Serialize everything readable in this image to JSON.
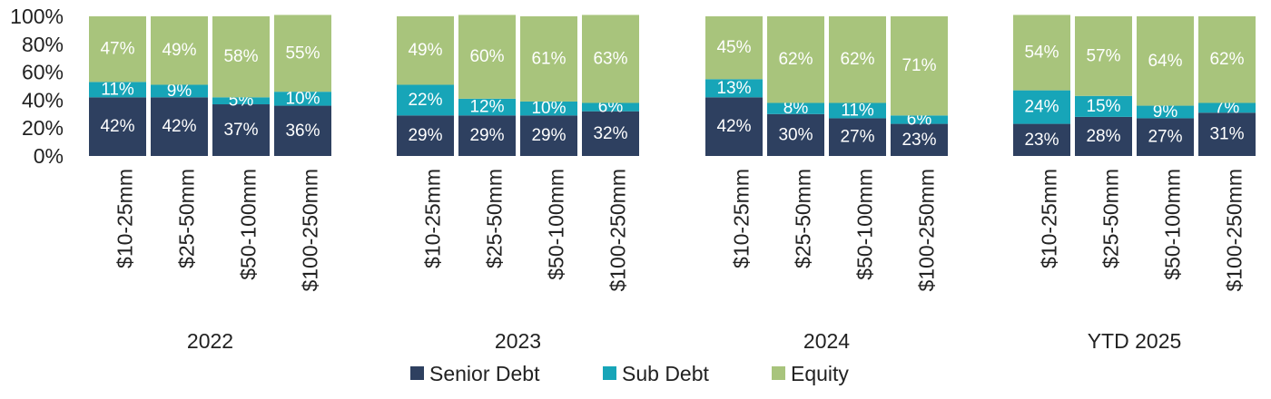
{
  "chart_data": {
    "type": "bar",
    "stacked": true,
    "ylim": [
      0,
      100
    ],
    "yticks": [
      "0%",
      "20%",
      "40%",
      "60%",
      "80%",
      "100%"
    ],
    "groups": [
      {
        "label": "2022",
        "categories": [
          "$10-25mm",
          "$25-50mm",
          "$50-100mm",
          "$100-250mm"
        ]
      },
      {
        "label": "2023",
        "categories": [
          "$10-25mm",
          "$25-50mm",
          "$50-100mm",
          "$100-250mm"
        ]
      },
      {
        "label": "2024",
        "categories": [
          "$10-25mm",
          "$25-50mm",
          "$50-100mm",
          "$100-250mm"
        ]
      },
      {
        "label": "YTD 2025",
        "categories": [
          "$10-25mm",
          "$25-50mm",
          "$50-100mm",
          "$100-250mm"
        ]
      }
    ],
    "series": [
      {
        "name": "Senior Debt",
        "color": "#2e4060",
        "values": [
          42,
          42,
          37,
          36,
          29,
          29,
          29,
          32,
          42,
          30,
          27,
          23,
          23,
          28,
          27,
          31
        ],
        "labels": [
          "42%",
          "42%",
          "37%",
          "36%",
          "29%",
          "29%",
          "29%",
          "32%",
          "42%",
          "30%",
          "27%",
          "23%",
          "23%",
          "28%",
          "27%",
          "31%"
        ]
      },
      {
        "name": "Sub Debt",
        "color": "#17a5b8",
        "values": [
          11,
          9,
          5,
          10,
          22,
          12,
          10,
          6,
          13,
          8,
          11,
          6,
          24,
          15,
          9,
          7
        ],
        "labels": [
          "11%",
          "9%",
          "5%",
          "10%",
          "22%",
          "12%",
          "10%",
          "6%",
          "13%",
          "8%",
          "11%",
          "6%",
          "24%",
          "15%",
          "9%",
          "7%"
        ]
      },
      {
        "name": "Equity",
        "color": "#a8c47c",
        "values": [
          47,
          49,
          58,
          55,
          49,
          60,
          61,
          63,
          45,
          62,
          62,
          71,
          54,
          57,
          64,
          62
        ],
        "labels": [
          "47%",
          "49%",
          "58%",
          "55%",
          "49%",
          "60%",
          "61%",
          "63%",
          "45%",
          "62%",
          "62%",
          "71%",
          "54%",
          "57%",
          "64%",
          "62%"
        ]
      }
    ],
    "legend": "bottom",
    "grid": false
  }
}
